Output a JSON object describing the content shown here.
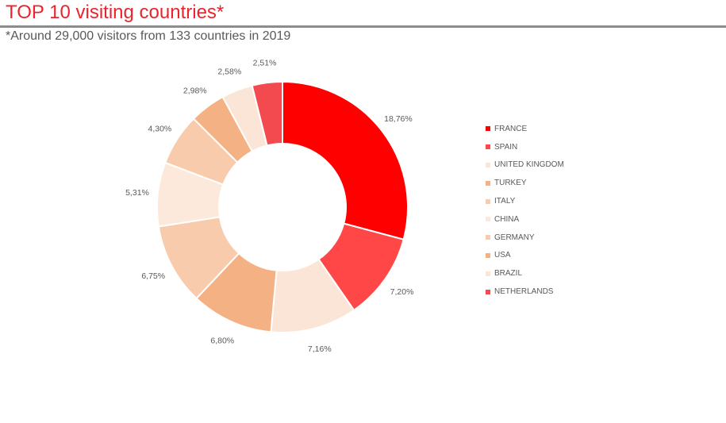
{
  "header": {
    "title": "TOP 10 visiting countries*",
    "subtitle": "*Around 29,000 visitors from 133 countries in 2019"
  },
  "chart_data": {
    "type": "pie",
    "variant": "donut",
    "legend_position": "right",
    "categories": [
      "FRANCE",
      "SPAIN",
      "UNITED KINGDOM",
      "TURKEY",
      "ITALY",
      "CHINA",
      "GERMANY",
      "USA",
      "BRAZIL",
      "NETHERLANDS"
    ],
    "values": [
      18.76,
      7.2,
      7.16,
      6.8,
      6.75,
      5.31,
      4.3,
      2.98,
      2.58,
      2.51
    ],
    "labels": [
      "18,76%",
      "7,20%",
      "7,16%",
      "6,80%",
      "6,75%",
      "5,31%",
      "4,30%",
      "2,98%",
      "2,58%",
      "2,51%"
    ],
    "colors": [
      "#ff0000",
      "#ff4747",
      "#fbe5d6",
      "#f4b183",
      "#f8cbad",
      "#fde9db",
      "#f8cbad",
      "#f4b183",
      "#fbe5d6",
      "#f24a4f"
    ]
  }
}
